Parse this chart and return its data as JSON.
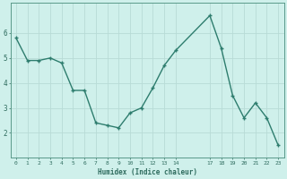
{
  "x": [
    0,
    1,
    2,
    3,
    4,
    5,
    6,
    7,
    8,
    9,
    10,
    11,
    12,
    13,
    14,
    17,
    18,
    19,
    20,
    21,
    22,
    23
  ],
  "y": [
    5.8,
    4.9,
    4.9,
    5.0,
    4.8,
    3.7,
    3.7,
    2.4,
    2.3,
    2.2,
    2.8,
    3.0,
    3.8,
    4.7,
    5.3,
    6.7,
    5.4,
    3.5,
    2.6,
    3.2,
    2.6,
    1.5
  ],
  "xlabel": "Humidex (Indice chaleur)",
  "xtick_vals": [
    0,
    1,
    2,
    3,
    4,
    5,
    6,
    7,
    8,
    9,
    10,
    11,
    12,
    13,
    14,
    17,
    18,
    19,
    20,
    21,
    22,
    23
  ],
  "xtick_labels": [
    "0",
    "1",
    "2",
    "3",
    "4",
    "5",
    "6",
    "7",
    "8",
    "9",
    "10",
    "11",
    "12",
    "13",
    "14",
    "17",
    "18",
    "19",
    "20",
    "21",
    "22",
    "23"
  ],
  "yticks": [
    2,
    3,
    4,
    5,
    6
  ],
  "ylim": [
    1.0,
    7.2
  ],
  "xlim": [
    -0.5,
    23.5
  ],
  "bg_color": "#cff0eb",
  "line_color": "#2e7d6e",
  "grid_color": "#b8dbd6",
  "axis_color": "#5a9a8a",
  "tick_color": "#2e6b5e",
  "label_color": "#2e6b5e"
}
